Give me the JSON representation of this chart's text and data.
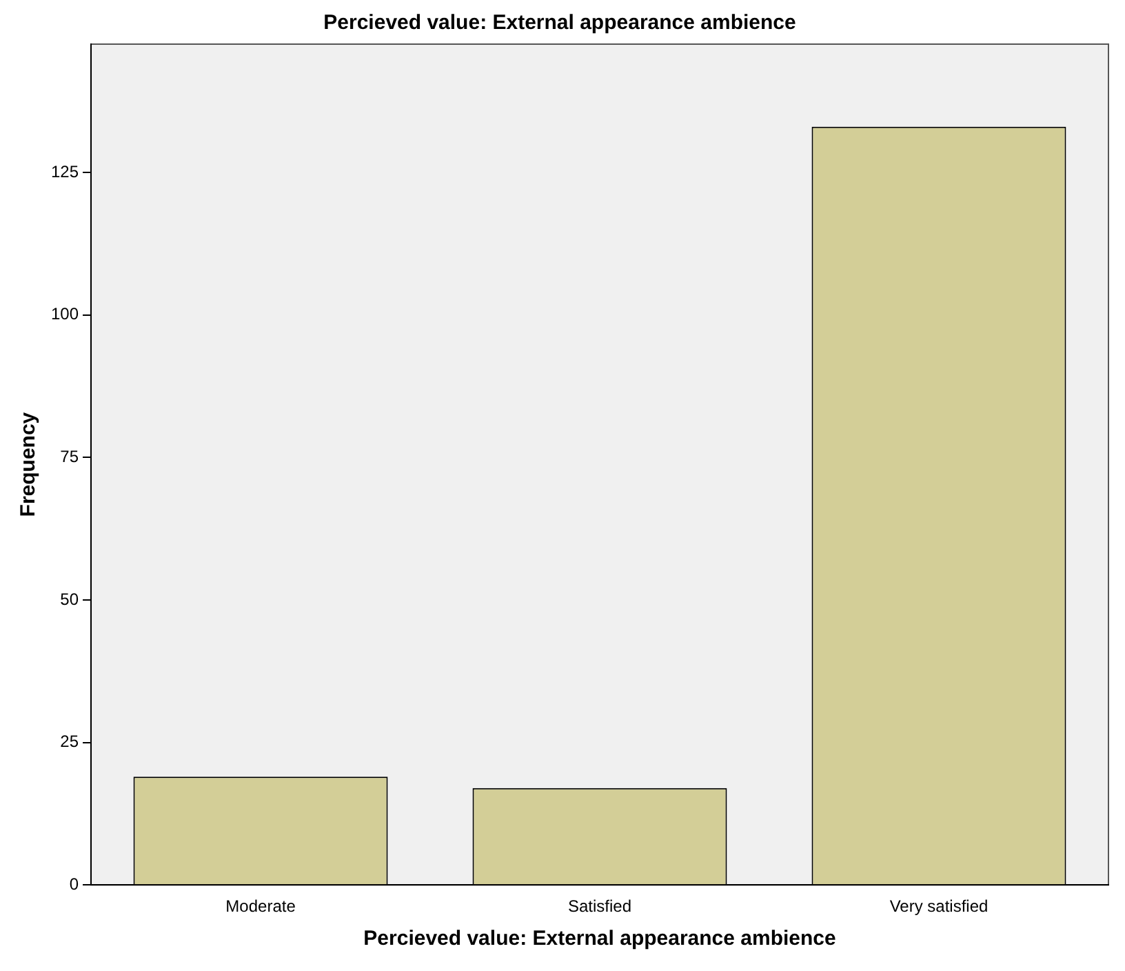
{
  "chart_data": {
    "type": "bar",
    "title": "Percieved value: External appearance ambience",
    "xlabel": "Percieved value: External appearance ambience",
    "ylabel": "Frequency",
    "categories": [
      "Moderate",
      "Satisfied",
      "Very satisfied"
    ],
    "values": [
      19,
      17,
      133
    ],
    "color": "#d3ce97",
    "ylim": [
      0,
      147.5
    ],
    "yticks": [
      0,
      25,
      50,
      75,
      100,
      125
    ],
    "grid": false,
    "legend": false
  }
}
